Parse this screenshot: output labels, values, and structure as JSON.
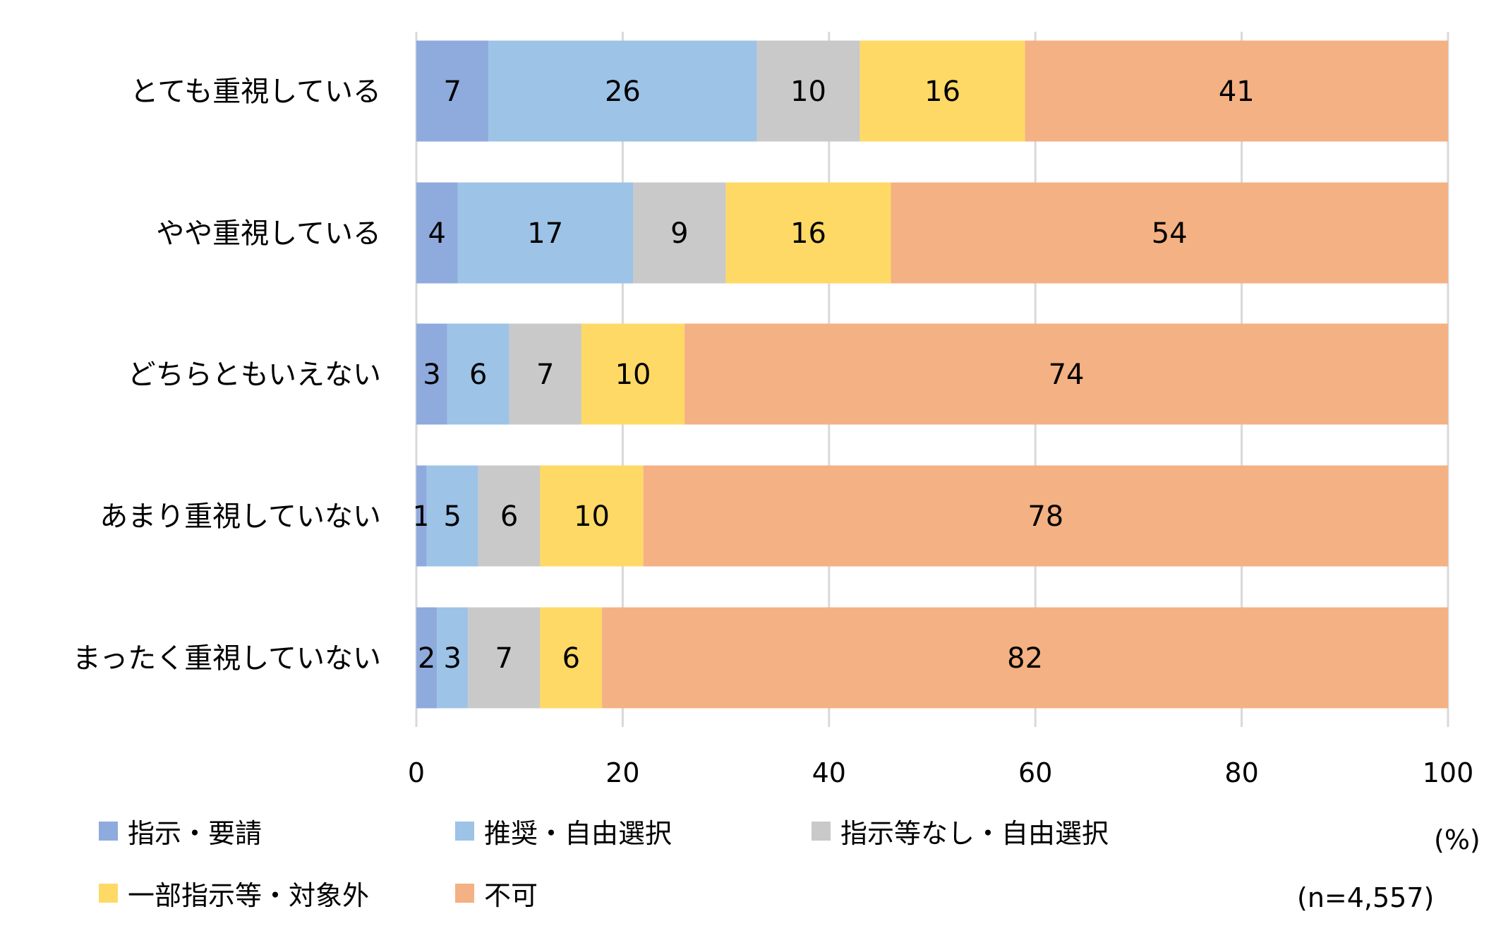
{
  "chart_data": {
    "type": "bar",
    "orientation": "horizontal",
    "stacked": true,
    "categories": [
      "とても重視している",
      "やや重視している",
      "どちらともいえない",
      "あまり重視していない",
      "まったく重視していない"
    ],
    "series": [
      {
        "name": "指示・要請",
        "color": "#8FAADC",
        "values": [
          7,
          4,
          3,
          1,
          2
        ]
      },
      {
        "name": "推奨・自由選択",
        "color": "#9DC3E6",
        "values": [
          26,
          17,
          6,
          5,
          3
        ]
      },
      {
        "name": "指示等なし・自由選択",
        "color": "#C9C9C9",
        "values": [
          10,
          9,
          7,
          6,
          7
        ]
      },
      {
        "name": "一部指示等・対象外",
        "color": "#FFD966",
        "values": [
          16,
          16,
          10,
          10,
          6
        ]
      },
      {
        "name": "不可",
        "color": "#F4B183",
        "values": [
          41,
          54,
          74,
          78,
          82
        ]
      }
    ],
    "xlim": [
      0,
      100
    ],
    "xticks": [
      "0",
      "20",
      "40",
      "60",
      "80",
      "100"
    ],
    "xlabel": "(%)",
    "grid": true,
    "legend_position": "bottom-left",
    "annotation": "(n=4,557)"
  }
}
